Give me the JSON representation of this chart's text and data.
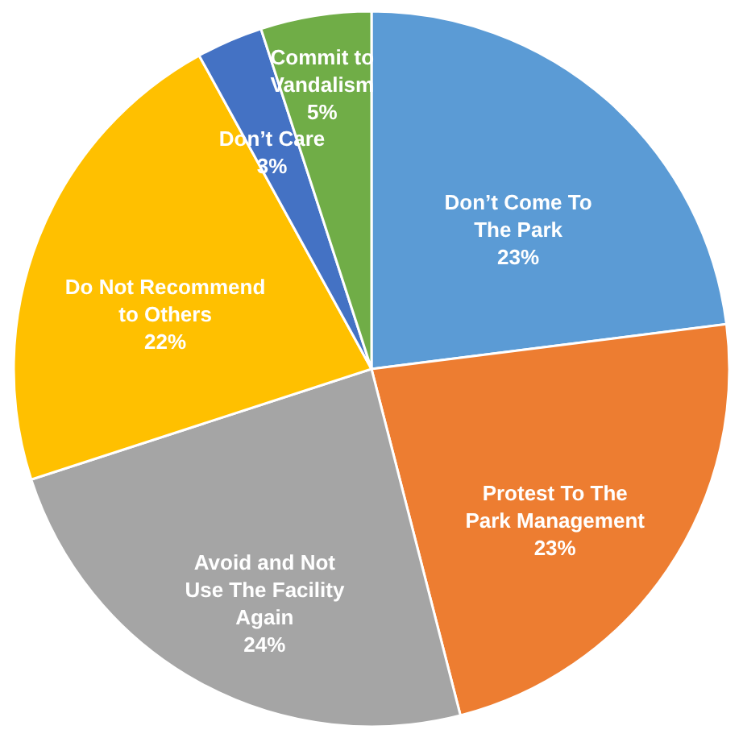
{
  "chart_data": {
    "type": "pie",
    "categories": [
      "Don’t Come To The Park",
      "Protest To The Park Management",
      "Avoid and Not Use The Facility Again",
      "Do Not Recommend to Others",
      "Don’t Care",
      "Commit to Vandalism"
    ],
    "values": [
      23,
      23,
      24,
      22,
      3,
      5
    ],
    "value_labels": [
      "23%",
      "23%",
      "24%",
      "22%",
      "3%",
      "5%"
    ],
    "colors": [
      "#5b9bd5",
      "#ed7d31",
      "#a5a5a5",
      "#ffc000",
      "#4472c4",
      "#70ad47"
    ],
    "legend": false
  }
}
